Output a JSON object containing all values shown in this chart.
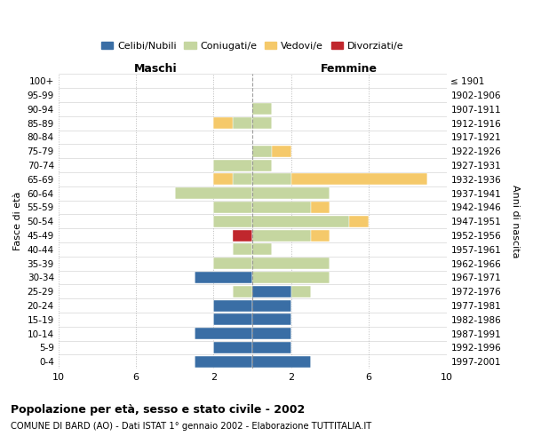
{
  "age_groups": [
    "0-4",
    "5-9",
    "10-14",
    "15-19",
    "20-24",
    "25-29",
    "30-34",
    "35-39",
    "40-44",
    "45-49",
    "50-54",
    "55-59",
    "60-64",
    "65-69",
    "70-74",
    "75-79",
    "80-84",
    "85-89",
    "90-94",
    "95-99",
    "100+"
  ],
  "birth_years": [
    "1997-2001",
    "1992-1996",
    "1987-1991",
    "1982-1986",
    "1977-1981",
    "1972-1976",
    "1967-1971",
    "1962-1966",
    "1957-1961",
    "1952-1956",
    "1947-1951",
    "1942-1946",
    "1937-1941",
    "1932-1936",
    "1927-1931",
    "1922-1926",
    "1917-1921",
    "1912-1916",
    "1907-1911",
    "1902-1906",
    "≤ 1901"
  ],
  "maschi": {
    "celibi": [
      3,
      2,
      3,
      2,
      2,
      0,
      3,
      0,
      0,
      0,
      0,
      0,
      0,
      0,
      0,
      0,
      0,
      0,
      0,
      0,
      0
    ],
    "coniugati": [
      0,
      0,
      0,
      0,
      0,
      1,
      0,
      2,
      1,
      0,
      2,
      2,
      4,
      1,
      2,
      0,
      0,
      1,
      0,
      0,
      0
    ],
    "vedovi": [
      0,
      0,
      0,
      0,
      0,
      0,
      0,
      0,
      0,
      0,
      0,
      0,
      0,
      1,
      0,
      0,
      0,
      1,
      0,
      0,
      0
    ],
    "divorziati": [
      0,
      0,
      0,
      0,
      0,
      0,
      0,
      0,
      0,
      1,
      0,
      0,
      0,
      0,
      0,
      0,
      0,
      0,
      0,
      0,
      0
    ]
  },
  "femmine": {
    "celibi": [
      3,
      2,
      2,
      2,
      2,
      2,
      0,
      0,
      0,
      0,
      0,
      0,
      0,
      0,
      0,
      0,
      0,
      0,
      0,
      0,
      0
    ],
    "coniugati": [
      0,
      0,
      0,
      0,
      0,
      1,
      4,
      4,
      1,
      3,
      5,
      3,
      4,
      2,
      1,
      1,
      0,
      1,
      1,
      0,
      0
    ],
    "vedovi": [
      0,
      0,
      0,
      0,
      0,
      0,
      0,
      0,
      0,
      1,
      1,
      1,
      0,
      7,
      0,
      1,
      0,
      0,
      0,
      0,
      0
    ],
    "divorziati": [
      0,
      0,
      0,
      0,
      0,
      0,
      0,
      0,
      0,
      0,
      0,
      0,
      0,
      0,
      0,
      0,
      0,
      0,
      0,
      0,
      0
    ]
  },
  "colors": {
    "celibi": "#3a6ea5",
    "coniugati": "#c5d6a0",
    "vedovi": "#f5c96a",
    "divorziati": "#c0272d"
  },
  "xlim": 10,
  "title": "Popolazione per età, sesso e stato civile - 2002",
  "subtitle": "COMUNE DI BARD (AO) - Dati ISTAT 1° gennaio 2002 - Elaborazione TUTTITALIA.IT",
  "xlabel_left": "Maschi",
  "xlabel_right": "Femmine",
  "ylabel_left": "Fasce di età",
  "ylabel_right": "Anni di nascita",
  "legend_labels": [
    "Celibi/Nubili",
    "Coniugati/e",
    "Vedovi/e",
    "Divorziati/e"
  ]
}
